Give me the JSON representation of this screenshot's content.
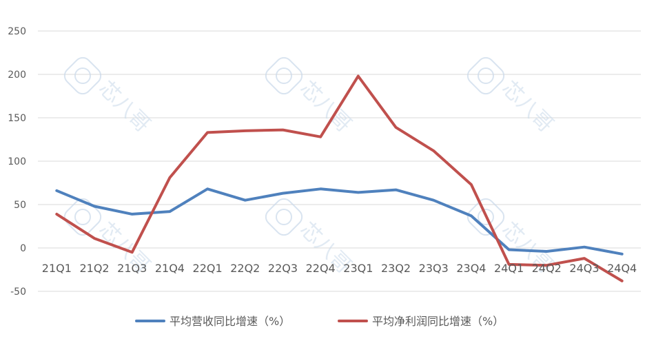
{
  "chart_data": {
    "type": "line",
    "categories": [
      "21Q1",
      "21Q2",
      "21Q3",
      "21Q4",
      "22Q1",
      "22Q2",
      "22Q3",
      "22Q4",
      "23Q1",
      "23Q2",
      "23Q3",
      "23Q4",
      "24Q1",
      "24Q2",
      "24Q3",
      "24Q4"
    ],
    "series": [
      {
        "name": "平均营收同比增速（%）",
        "color": "#4f81bd",
        "values": [
          66,
          48,
          39,
          42,
          68,
          55,
          63,
          68,
          64,
          67,
          55,
          37,
          -2,
          -4,
          1,
          -7
        ]
      },
      {
        "name": "平均净利润同比增速（%）",
        "color": "#c0504d",
        "values": [
          39,
          11,
          -5,
          81,
          133,
          135,
          136,
          128,
          198,
          139,
          112,
          73,
          -19,
          -20,
          -12,
          -38
        ]
      }
    ],
    "y_ticks": [
      250,
      200,
      150,
      100,
      50,
      0,
      -50
    ],
    "y_tick_labels": [
      "250",
      "200",
      "150",
      "100",
      "50",
      "0",
      "-50"
    ],
    "ylim": [
      -50,
      250
    ],
    "grid": true,
    "legend_position": "bottom",
    "title": "",
    "xlabel": "",
    "ylabel": ""
  },
  "watermark": {
    "text": "芯八哥",
    "icon": "chip-logo-icon"
  }
}
